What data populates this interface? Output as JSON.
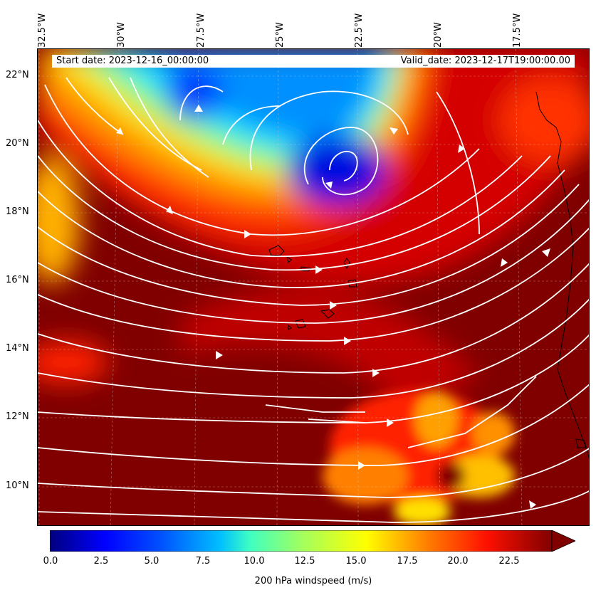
{
  "map": {
    "start_date": "Start date: 2023-12-16_00:00:00",
    "valid_date": "Valid_date: 2023-12-17T19:00:00.00",
    "longitude_labels": [
      "32.5°W",
      "30°W",
      "27.5°W",
      "25°W",
      "22.5°W",
      "20°W",
      "17.5°W"
    ],
    "latitude_labels": [
      "22°N",
      "20°N",
      "18°N",
      "16°N",
      "14°N",
      "12°N",
      "10°N"
    ],
    "extent": {
      "lon_min": -32.5,
      "lon_max": -15.1,
      "lat_min": 8.9,
      "lat_max": 22.8
    },
    "field": "200 hPa windspeed",
    "colormap": "jet",
    "vector_style": "white streamlines",
    "gridlines": "dashed"
  },
  "colorbar": {
    "label": "200 hPa windspeed (m/s)",
    "ticks": [
      "0.0",
      "2.5",
      "5.0",
      "7.5",
      "10.0",
      "12.5",
      "15.0",
      "17.5",
      "20.0",
      "22.5"
    ],
    "min": 0,
    "max": 25,
    "extend": "max",
    "colors": [
      "#00007f",
      "#0000ff",
      "#0080ff",
      "#00ffff",
      "#80ff80",
      "#ffff00",
      "#ff8000",
      "#ff0000",
      "#800000"
    ]
  }
}
